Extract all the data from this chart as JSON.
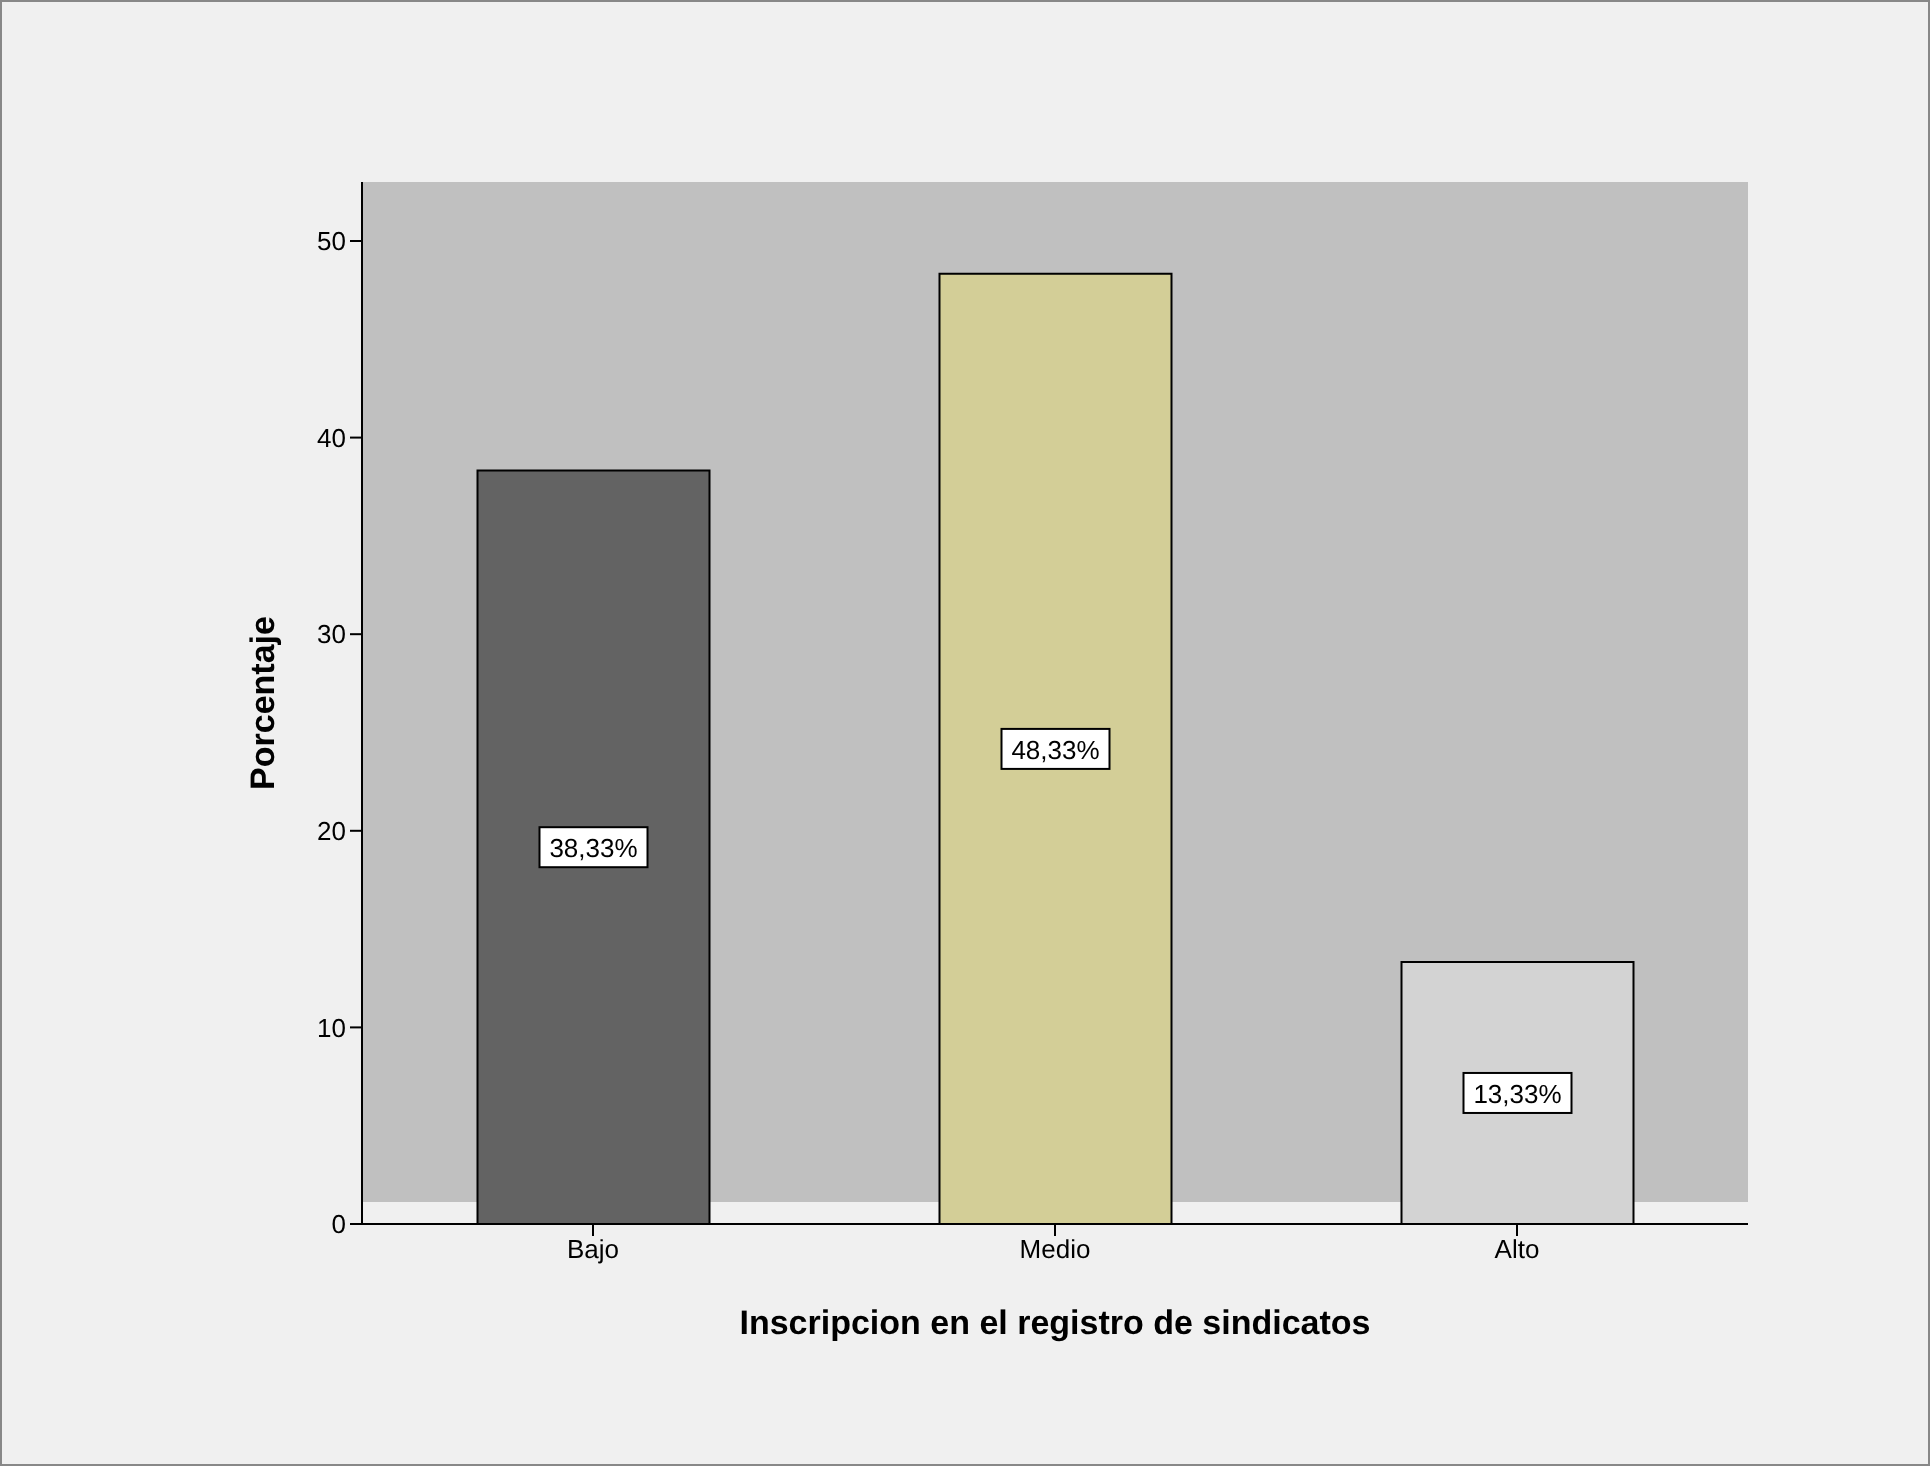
{
  "chart_data": {
    "type": "bar",
    "xlabel": "Inscripcion en el registro de sindicatos",
    "ylabel": "Porcentaje",
    "categories": [
      "Bajo",
      "Medio",
      "Alto"
    ],
    "values": [
      38.33,
      48.33,
      13.33
    ],
    "colors": [
      "#636363",
      "#d3ce97",
      "#d3d3d3"
    ],
    "value_labels": [
      "38,33%",
      "48,33%",
      "13,33%"
    ],
    "ylim": [
      0,
      53
    ],
    "yticks": [
      0,
      10,
      20,
      30,
      40,
      50
    ]
  }
}
